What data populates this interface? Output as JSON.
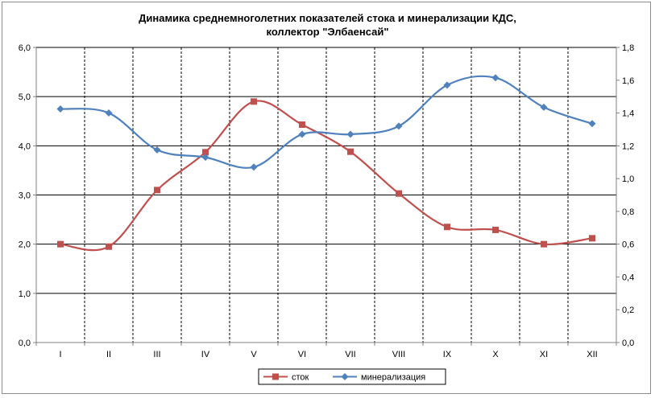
{
  "chart_data": {
    "type": "line",
    "title_line1": "Динамика среднемноголетних показателей стока и минерализации КДС,",
    "title_line2": "коллектор \"Элбаенсай\"",
    "categories": [
      "I",
      "II",
      "III",
      "IV",
      "V",
      "VI",
      "VII",
      "VIII",
      "IX",
      "X",
      "XI",
      "XII"
    ],
    "y_left": {
      "min": 0,
      "max": 6,
      "step": 1,
      "ticks": [
        "0,0",
        "1,0",
        "2,0",
        "3,0",
        "4,0",
        "5,0",
        "6,0"
      ]
    },
    "y_right": {
      "min": 0,
      "max": 1.8,
      "step": 0.2,
      "ticks": [
        "0,0",
        "0,2",
        "0,4",
        "0,6",
        "0,8",
        "1,0",
        "1,2",
        "1,4",
        "1,6",
        "1,8"
      ]
    },
    "series": [
      {
        "name": "сток",
        "axis": "left",
        "color": "#c0504d",
        "marker": "square",
        "values": [
          2.0,
          1.95,
          3.1,
          3.87,
          4.9,
          4.43,
          3.88,
          3.03,
          2.35,
          2.29,
          2.0,
          2.12
        ]
      },
      {
        "name": "минерализация",
        "axis": "right",
        "color": "#4f81bd",
        "marker": "diamond",
        "values": [
          1.425,
          1.4,
          1.175,
          1.13,
          1.07,
          1.27,
          1.27,
          1.32,
          1.57,
          1.615,
          1.435,
          1.335
        ]
      }
    ],
    "grid": true,
    "legend": "bottom"
  }
}
